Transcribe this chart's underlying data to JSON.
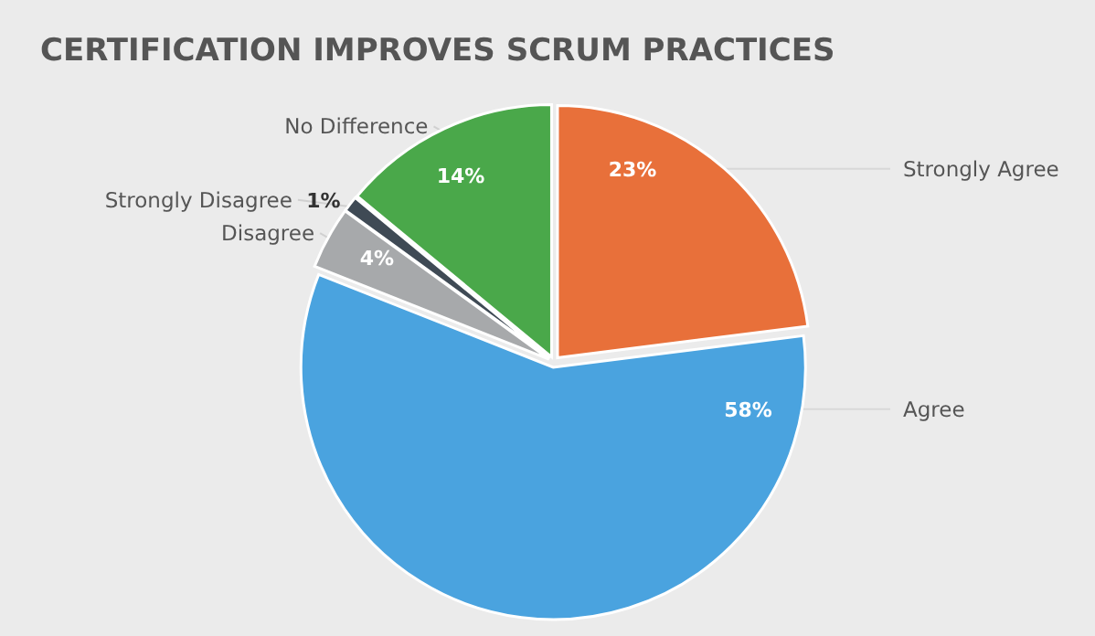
{
  "chart_data": {
    "type": "pie",
    "title": "CERTIFICATION IMPROVES SCRUM PRACTICES",
    "categories": [
      "Strongly Agree",
      "Agree",
      "Disagree",
      "Strongly Disagree",
      "No Difference"
    ],
    "values": [
      23,
      58,
      4,
      1,
      14
    ],
    "value_labels": [
      "23%",
      "58%",
      "4%",
      "1%",
      "14%"
    ],
    "colors": [
      "#e8703a",
      "#4aa3df",
      "#a7a9ab",
      "#3f4a55",
      "#4aa84a"
    ]
  }
}
